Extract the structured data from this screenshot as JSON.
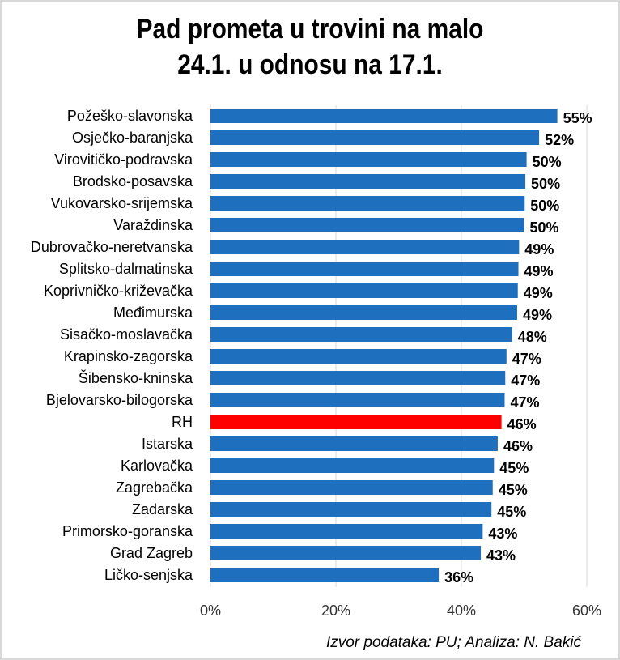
{
  "chart_data": {
    "type": "bar",
    "orientation": "horizontal",
    "title": [
      "Pad prometa u trovini na malo",
      "24.1. u odnosu na 17.1."
    ],
    "categories": [
      "Požeško-slavonska",
      "Osječko-baranjska",
      "Virovitičko-podravska",
      "Brodsko-posavska",
      "Vukovarsko-srijemska",
      "Varaždinska",
      "Dubrovačko-neretvanska",
      "Splitsko-dalmatinska",
      "Koprivničko-križevačka",
      "Međimurska",
      "Sisačko-moslavačka",
      "Krapinsko-zagorska",
      "Šibensko-kninska",
      "Bjelovarsko-bilogorska",
      "RH",
      "Istarska",
      "Karlovačka",
      "Zagrebačka",
      "Zadarska",
      "Primorsko-goranska",
      "Grad Zagreb",
      "Ličko-senjska"
    ],
    "values": [
      55.3,
      52.4,
      50.4,
      50.2,
      50.1,
      50.0,
      49.2,
      49.1,
      49.0,
      48.9,
      48.1,
      47.2,
      47.0,
      46.9,
      46.4,
      45.8,
      45.2,
      45.0,
      44.8,
      43.4,
      43.1,
      36.4
    ],
    "data_labels": [
      "55%",
      "52%",
      "50%",
      "50%",
      "50%",
      "50%",
      "49%",
      "49%",
      "49%",
      "49%",
      "48%",
      "47%",
      "47%",
      "47%",
      "46%",
      "46%",
      "45%",
      "45%",
      "45%",
      "43%",
      "43%",
      "36%"
    ],
    "highlight_category": "RH",
    "xlim": [
      0,
      60
    ],
    "xticks": [
      "0%",
      "20%",
      "40%",
      "60%"
    ],
    "grid": true,
    "colors": {
      "bar": "#1f6fbf",
      "highlight": "#ff0000",
      "grid": "#d9d9d9"
    }
  },
  "source": "Izvor podataka: PU; Analiza: N. Bakić"
}
